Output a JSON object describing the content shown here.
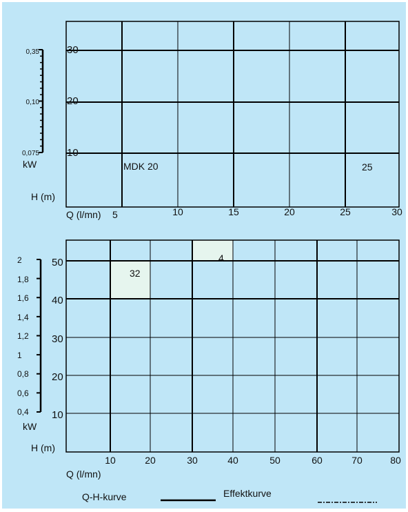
{
  "chart_data": [
    {
      "type": "line",
      "title": "",
      "x_tick_labels": [
        "5",
        "10",
        "15",
        "20",
        "25",
        "30"
      ],
      "x_label": "Q (l/mn)",
      "h_tick_labels": [
        "10",
        "20",
        "30"
      ],
      "h_label": "H (m)",
      "kw_tick_labels": [
        "0,075",
        "0,10",
        "0,35"
      ],
      "kw_label": "kW",
      "annotations": [
        "MDK 20",
        "25"
      ],
      "xlim": [
        5,
        30
      ],
      "ylim": [
        0,
        35
      ],
      "grid": true,
      "series": []
    },
    {
      "type": "line",
      "title": "",
      "x_tick_labels": [
        "10",
        "20",
        "30",
        "40",
        "50",
        "60",
        "70",
        "80"
      ],
      "x_label": "Q (l/mn)",
      "h_tick_labels": [
        "10",
        "20",
        "30",
        "40",
        "50"
      ],
      "h_label": "H (m)",
      "kw_tick_labels": [
        "0,4",
        "0,6",
        "0,8",
        "1",
        "1,2",
        "1,4",
        "1,6",
        "1,8",
        "2"
      ],
      "kw_label": "kW",
      "annotations": [
        "32",
        "4"
      ],
      "xlim": [
        0,
        80
      ],
      "ylim": [
        0,
        55
      ],
      "grid": true,
      "series": []
    }
  ],
  "legend": {
    "qh_label": "Q-H-kurve",
    "effekt_label": "Effektkurve"
  },
  "colors": {
    "background": "#bfe6f7",
    "grid": "#000000",
    "highlight": "#e6f5ee"
  }
}
